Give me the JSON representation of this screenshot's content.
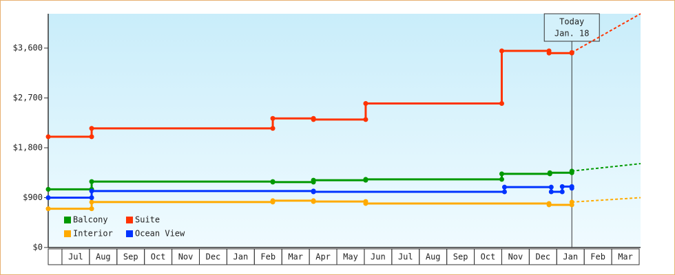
{
  "chart_data": {
    "type": "step",
    "xlim": [
      -0.5,
      21.05
    ],
    "ylim": [
      0,
      4220
    ],
    "xticks": [
      {
        "value": 0.5,
        "label": "Jul"
      },
      {
        "value": 1.5,
        "label": "Aug"
      },
      {
        "value": 2.5,
        "label": "Sep"
      },
      {
        "value": 3.5,
        "label": "Oct"
      },
      {
        "value": 4.5,
        "label": "Nov"
      },
      {
        "value": 5.5,
        "label": "Dec"
      },
      {
        "value": 6.5,
        "label": "Jan"
      },
      {
        "value": 7.5,
        "label": "Feb"
      },
      {
        "value": 8.5,
        "label": "Mar"
      },
      {
        "value": 9.5,
        "label": "Apr"
      },
      {
        "value": 10.5,
        "label": "May"
      },
      {
        "value": 11.5,
        "label": "Jun"
      },
      {
        "value": 12.5,
        "label": "Jul"
      },
      {
        "value": 13.5,
        "label": "Aug"
      },
      {
        "value": 14.5,
        "label": "Sep"
      },
      {
        "value": 15.5,
        "label": "Oct"
      },
      {
        "value": 16.5,
        "label": "Nov"
      },
      {
        "value": 17.5,
        "label": "Dec"
      },
      {
        "value": 18.5,
        "label": "Jan"
      },
      {
        "value": 19.5,
        "label": "Feb"
      },
      {
        "value": 20.5,
        "label": "Mar"
      }
    ],
    "yticks": [
      {
        "value": 0,
        "label": "$0"
      },
      {
        "value": 900,
        "label": "$900"
      },
      {
        "value": 1800,
        "label": "$1,800"
      },
      {
        "value": 2700,
        "label": "$2,700"
      },
      {
        "value": 3600,
        "label": "$3,600"
      }
    ],
    "today": {
      "x": 18.55,
      "label": "Today",
      "date": "Jan. 18"
    },
    "series": [
      {
        "name": "Balcony",
        "color": "#009900",
        "x": [
          -0.5,
          1.08,
          7.67,
          9.15,
          11.05,
          16.0,
          17.75,
          18.55
        ],
        "values": [
          1050,
          1190,
          1180,
          1215,
          1230,
          1330,
          1350,
          1380
        ],
        "forecast": 1514
      },
      {
        "name": "Suite",
        "color": "#ff3300",
        "x": [
          -0.5,
          1.08,
          7.67,
          9.15,
          11.05,
          16.0,
          17.72,
          18.55
        ],
        "values": [
          2000,
          2150,
          2330,
          2310,
          2600,
          3550,
          3510,
          3520
        ],
        "forecast": 4220
      },
      {
        "name": "Interior",
        "color": "#ffaa00",
        "x": [
          -0.5,
          1.08,
          7.67,
          9.15,
          11.05,
          17.72,
          18.55
        ],
        "values": [
          700,
          820,
          845,
          830,
          795,
          770,
          820
        ],
        "forecast": 900
      },
      {
        "name": "Ocean View",
        "color": "#0033ff",
        "x": [
          -0.5,
          1.08,
          9.15,
          16.1,
          17.8,
          18.2,
          18.55
        ],
        "values": [
          900,
          1020,
          1005,
          1090,
          1005,
          1100,
          1070
        ],
        "forecast": null
      }
    ]
  }
}
